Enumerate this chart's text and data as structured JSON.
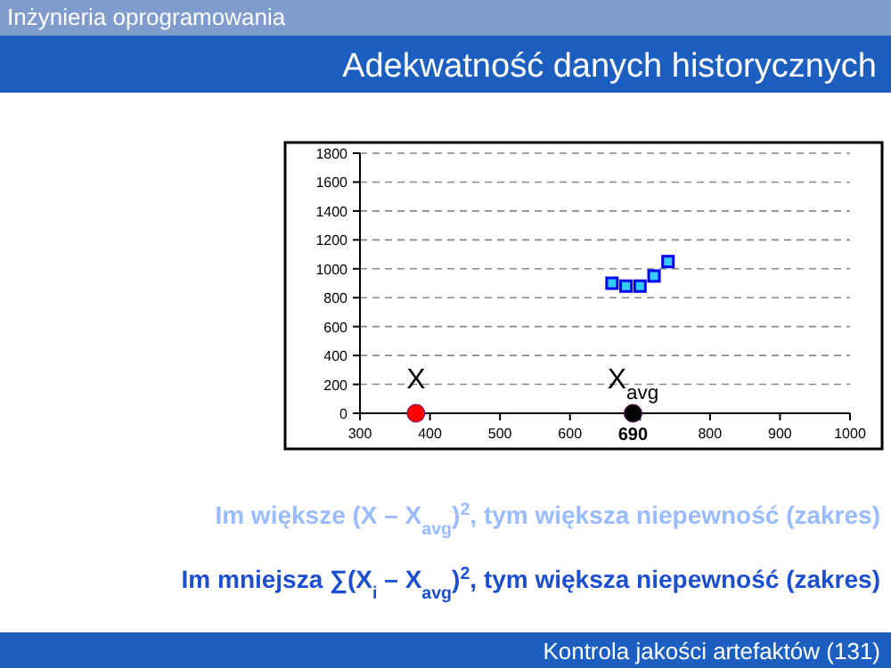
{
  "chart_data": {
    "type": "scatter",
    "title": "Adekwatność danych historycznych",
    "annotations": [
      "Inżynieria oprogramowania",
      "Im większe (X – X$_{avg}$)$^{2}$, tym większa niepewność (zakres)",
      "Im mniejsza ∑(X$_{i}$ – X$_{avg}$)$^{2}$, tym większa niepewność (zakres)",
      "Kontrola jakości artefaktów (131)",
      {
        "text": "690",
        "x": 690,
        "y": 0
      }
    ],
    "series": [
      {
        "color": "#0000ee",
        "marker": "square",
        "x": [
          660,
          680,
          700,
          720,
          740
        ],
        "values": [
          900,
          880,
          880,
          950,
          1050
        ]
      },
      {
        "name": "X",
        "color": "#ff0000",
        "marker": "circle",
        "x": [
          380
        ],
        "values": [
          0
        ]
      },
      {
        "name": "X$_{avg}$",
        "color": "#000000",
        "marker": "circle",
        "x": [
          690
        ],
        "values": [
          0
        ]
      }
    ],
    "xlim": [
      300,
      1000
    ],
    "xticks": [
      300,
      400,
      500,
      600,
      {
        "value": 700,
        "label": null
      },
      800,
      900,
      1000
    ],
    "ylim": [
      0,
      1800
    ],
    "yticks": [
      0,
      200,
      400,
      600,
      800,
      1000,
      1200,
      1400,
      1600,
      1800
    ],
    "grid": "y"
  }
}
